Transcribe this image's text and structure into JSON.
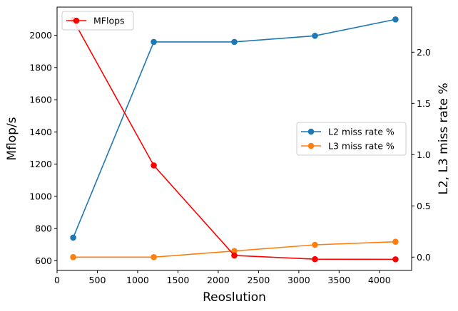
{
  "chart_data": {
    "type": "line",
    "xlabel": "Reoslution",
    "ylabel_left": "Mflop/s",
    "ylabel_right": "L2, L3 miss rate %",
    "xlim": [
      0,
      4400
    ],
    "ylim_left": [
      540,
      2175
    ],
    "ylim_right": [
      -0.13,
      2.44
    ],
    "x_ticks": [
      0,
      500,
      1000,
      1500,
      2000,
      2500,
      3000,
      3500,
      4000
    ],
    "y_left_ticks": [
      600,
      800,
      1000,
      1200,
      1400,
      1600,
      1800,
      2000
    ],
    "y_right_ticks": [
      "0.0",
      "0.5",
      "1.0",
      "1.5",
      "2.0"
    ],
    "x": [
      200,
      1200,
      2200,
      3200,
      4200
    ],
    "series_left": [
      {
        "name": "MFlops",
        "color": "#ff0000",
        "values": [
          2095,
          1192,
          633,
          610,
          609
        ]
      }
    ],
    "series_right": [
      {
        "name": "L2 miss rate %",
        "color": "#1f77b4",
        "values": [
          0.19,
          2.1,
          2.1,
          2.16,
          2.32
        ]
      },
      {
        "name": "L3 miss rate %",
        "color": "#ff7f0e",
        "values": [
          0.0,
          0.0,
          0.06,
          0.12,
          0.15
        ]
      }
    ],
    "legend_left_position": "top-left",
    "legend_right_position": "center-right",
    "grid": false
  }
}
